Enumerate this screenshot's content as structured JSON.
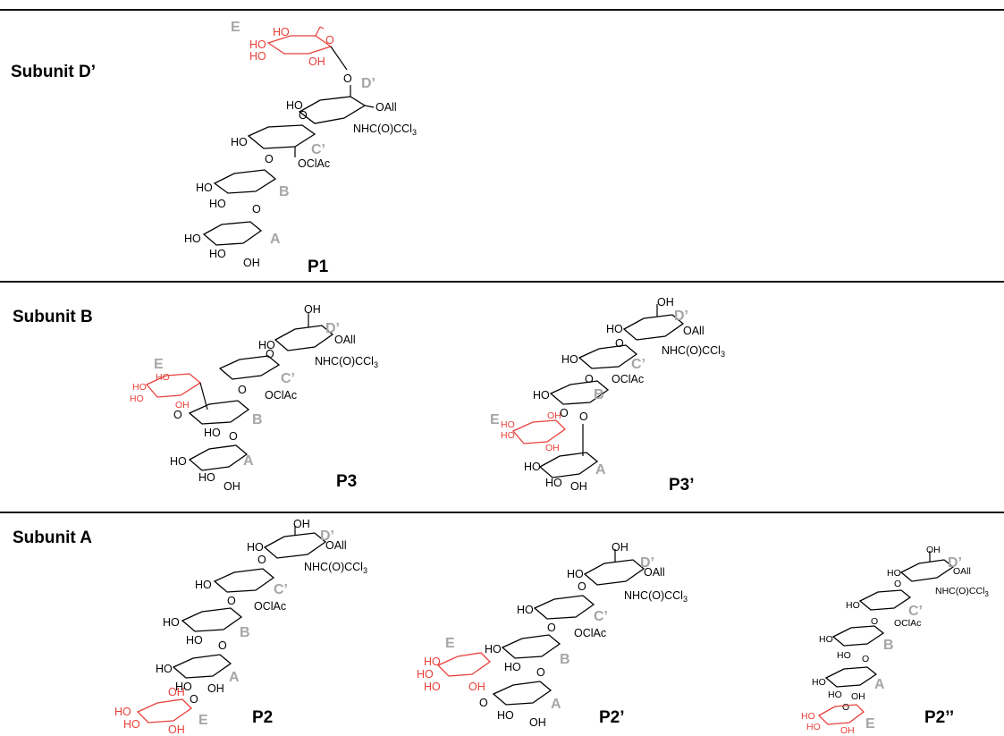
{
  "sections": [
    {
      "label": "Subunit D’",
      "compounds": [
        "P1"
      ]
    },
    {
      "label": "Subunit B",
      "compounds": [
        "P3",
        "P3’"
      ]
    },
    {
      "label": "Subunit A",
      "compounds": [
        "P2",
        "P2’",
        "P2’’"
      ]
    }
  ],
  "units": {
    "A": "A",
    "B": "B",
    "C": "C’",
    "D": "D’",
    "E": "E"
  },
  "groups": {
    "oall": "OAll",
    "nhc": "NHC(O)CCl",
    "nhc_sub": "3",
    "oclac": "OClAc",
    "ho": "HO",
    "oh": "OH",
    "o": "O"
  },
  "colors": {
    "highlight": "#e8403a",
    "unit_letter": "#a6a6a6",
    "ink": "#000000"
  }
}
